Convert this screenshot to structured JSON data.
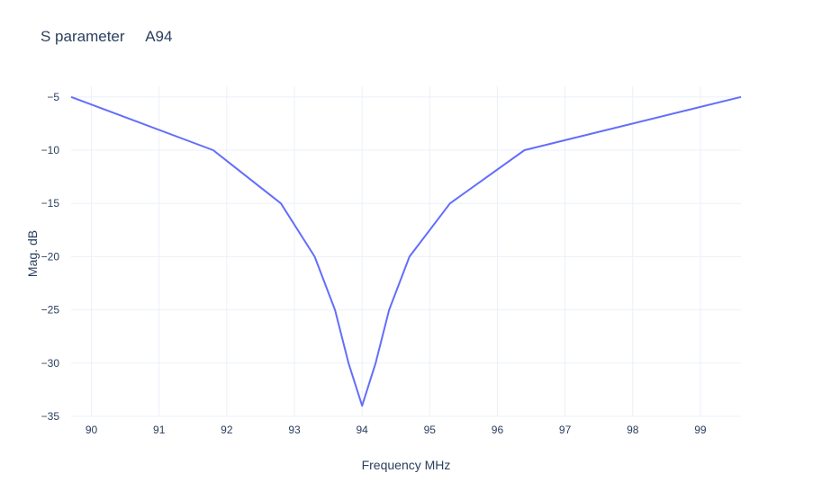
{
  "chart_data": {
    "type": "line",
    "title": "S parameter     A94",
    "xlabel": "Frequency MHz",
    "ylabel": "Mag. dB",
    "xlim": [
      89.7,
      99.6
    ],
    "ylim": [
      -35,
      -4
    ],
    "xticks": [
      90,
      91,
      92,
      93,
      94,
      95,
      96,
      97,
      98,
      99
    ],
    "yticks": [
      -35,
      -30,
      -25,
      -20,
      -15,
      -10,
      -5
    ],
    "grid": true,
    "series": [
      {
        "color": "#636efa",
        "x": [
          89.7,
          91.8,
          92.8,
          93.3,
          93.6,
          93.8,
          94.0,
          94.2,
          94.4,
          94.7,
          95.3,
          96.4,
          99.6
        ],
        "y": [
          -5,
          -10,
          -15,
          -20,
          -25,
          -30,
          -34,
          -30,
          -25,
          -20,
          -15,
          -10,
          -5
        ]
      }
    ]
  }
}
